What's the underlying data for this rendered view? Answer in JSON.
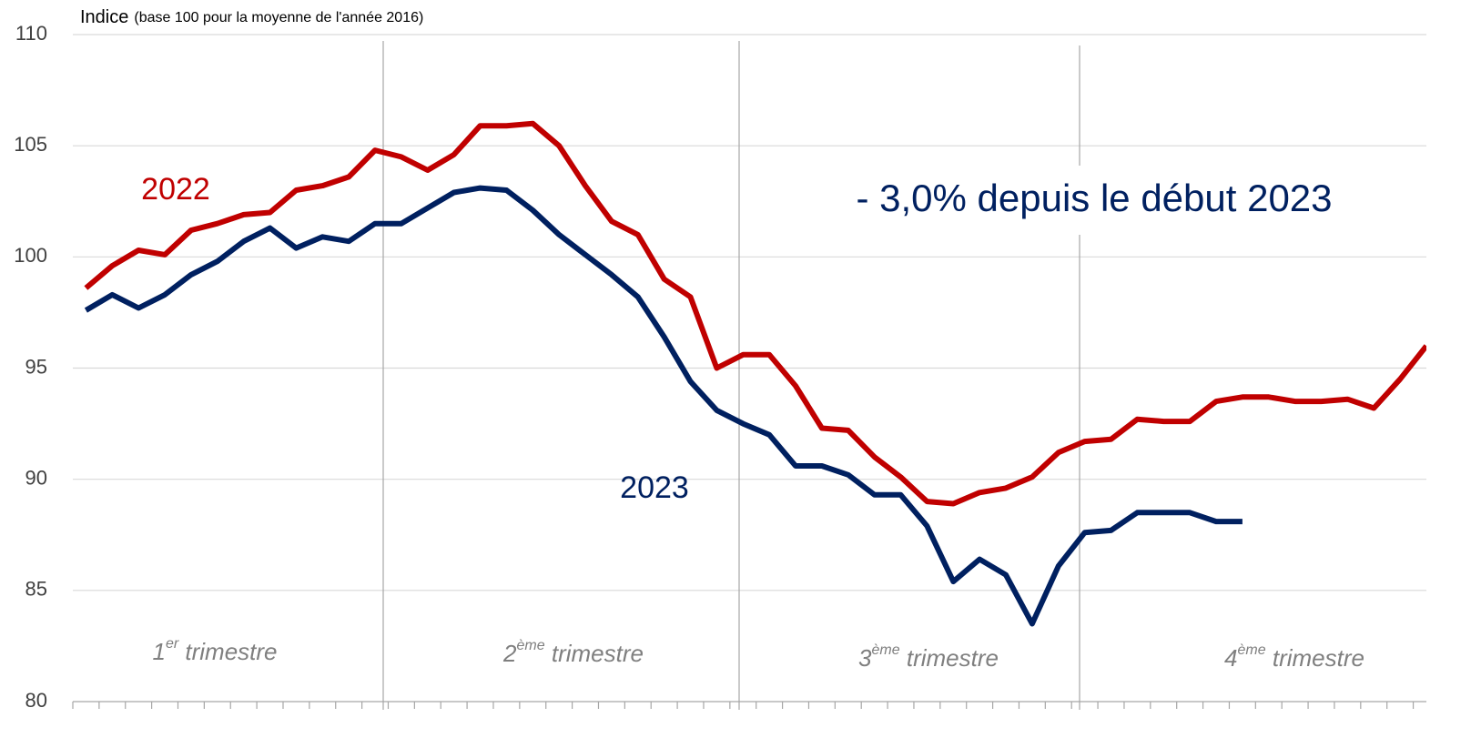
{
  "chart_data": {
    "type": "line",
    "title": "Indice",
    "subtitle": "(base 100 pour la moyenne de l'année 2016)",
    "annotation": "- 3,0% depuis le début 2023",
    "quarters": [
      {
        "number": "1",
        "suffix": "er",
        "text": " trimestre"
      },
      {
        "number": "2",
        "suffix": "ème",
        "text": " trimestre"
      },
      {
        "number": "3",
        "suffix": "ème",
        "text": " trimestre"
      },
      {
        "number": "4",
        "suffix": "ème",
        "text": " trimestre"
      }
    ],
    "x": [
      1,
      2,
      3,
      4,
      5,
      6,
      7,
      8,
      9,
      10,
      11,
      12,
      13,
      14,
      15,
      16,
      17,
      18,
      19,
      20,
      21,
      22,
      23,
      24,
      25,
      26,
      27,
      28,
      29,
      30,
      31,
      32,
      33,
      34,
      35,
      36,
      37,
      38,
      39,
      40,
      41,
      42,
      43,
      44,
      45,
      46,
      47,
      48,
      49,
      50,
      51,
      52
    ],
    "series": [
      {
        "name": "2022",
        "color": "#c00000",
        "values": [
          98.6,
          99.6,
          100.3,
          100.1,
          101.2,
          101.5,
          101.9,
          102.0,
          103.0,
          103.2,
          103.6,
          104.8,
          104.5,
          103.9,
          104.6,
          105.9,
          105.9,
          106.0,
          105.0,
          103.2,
          101.6,
          101.0,
          99.0,
          98.2,
          95.0,
          95.6,
          95.6,
          94.2,
          92.3,
          92.2,
          91.0,
          90.1,
          89.0,
          88.9,
          89.4,
          89.6,
          90.1,
          91.2,
          91.7,
          91.8,
          92.7,
          92.6,
          92.6,
          93.5,
          93.7,
          93.7,
          93.5,
          93.5,
          93.6,
          93.2,
          94.5,
          96.0
        ]
      },
      {
        "name": "2023",
        "color": "#002060",
        "values": [
          97.6,
          98.3,
          97.7,
          98.3,
          99.2,
          99.8,
          100.7,
          101.3,
          100.4,
          100.9,
          100.7,
          101.5,
          101.5,
          102.2,
          102.9,
          103.1,
          103.0,
          102.1,
          101.0,
          100.1,
          99.2,
          98.2,
          96.4,
          94.4,
          93.1,
          92.5,
          92.0,
          90.6,
          90.6,
          90.2,
          89.3,
          89.3,
          87.9,
          85.4,
          86.4,
          85.7,
          83.5,
          86.1,
          87.6,
          87.7,
          88.5,
          88.5,
          88.5,
          88.1,
          88.1,
          null,
          null,
          null,
          null,
          null,
          null,
          null
        ]
      }
    ],
    "xlim": [
      0.5,
      52
    ],
    "xticks": [
      0.5,
      1.5,
      2.5,
      3.5,
      4.5,
      5.5,
      6.5,
      7.5,
      8.5,
      9.5,
      10.5,
      11.5,
      12.5,
      13.5,
      14.5,
      15.5,
      16.5,
      17.5,
      18.5,
      19.5,
      20.5,
      21.5,
      22.5,
      23.5,
      24.5,
      25.5,
      26.5,
      27.5,
      28.5,
      29.5,
      30.5,
      31.5,
      32.5,
      33.5,
      34.5,
      35.5,
      36.5,
      37.5,
      38.5,
      39.5,
      40.5,
      41.5,
      42.5,
      43.5,
      44.5,
      45.5,
      46.5,
      47.5,
      48.5,
      49.5,
      50.5,
      51.5
    ],
    "ylim": [
      80,
      110
    ],
    "yticks": [
      80,
      85,
      90,
      95,
      100,
      105,
      110
    ],
    "grid": true
  }
}
